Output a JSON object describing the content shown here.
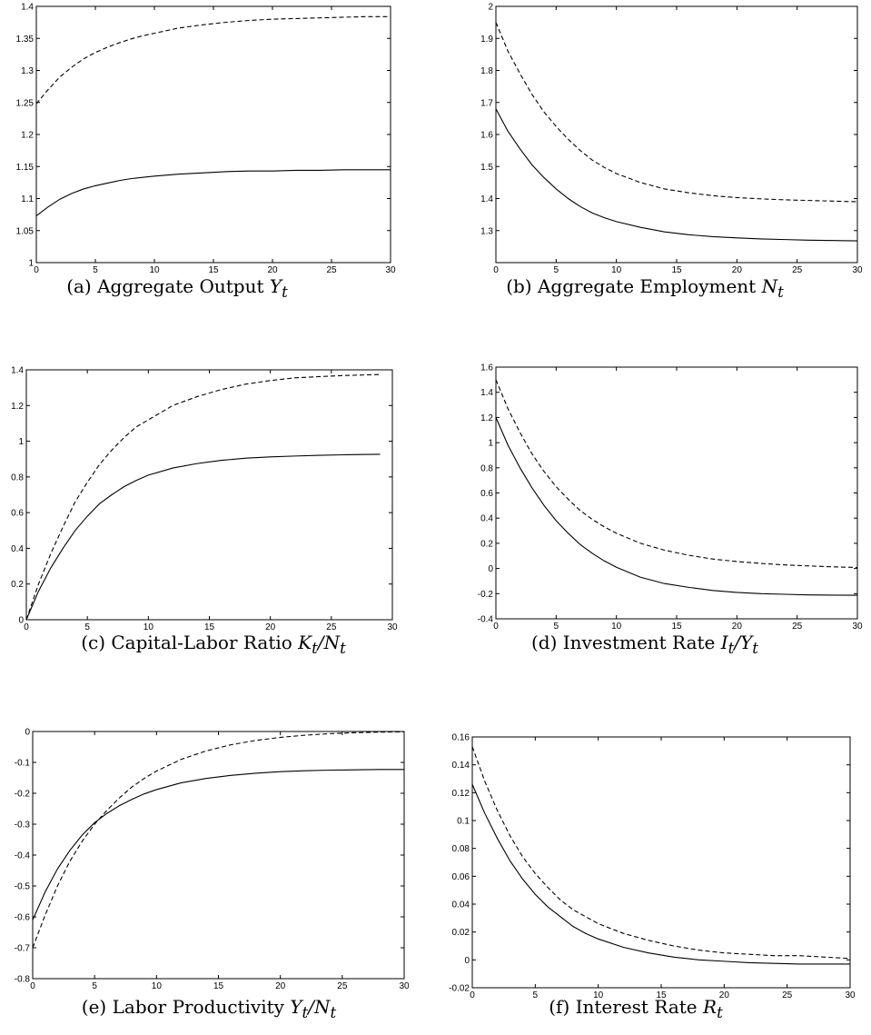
{
  "chart_data": [
    {
      "id": "a",
      "type": "line",
      "caption_prefix": "(a)",
      "caption_text": "Aggregate Output",
      "caption_var": "Y",
      "caption_sub": "t",
      "caption_rest": "",
      "x_ticks": [
        0,
        5,
        10,
        15,
        20,
        25,
        30
      ],
      "y_ticks": [
        1,
        1.05,
        1.1,
        1.15,
        1.2,
        1.25,
        1.3,
        1.35,
        1.4
      ],
      "xlim": [
        0,
        30
      ],
      "ylim": [
        1,
        1.4
      ],
      "series": [
        {
          "style": "solid",
          "x": [
            0,
            1,
            2,
            3,
            4,
            5,
            6,
            7,
            8,
            9,
            10,
            12,
            14,
            16,
            18,
            20,
            22,
            24,
            26,
            28,
            30
          ],
          "y": [
            1.073,
            1.087,
            1.099,
            1.108,
            1.115,
            1.12,
            1.124,
            1.128,
            1.131,
            1.133,
            1.135,
            1.138,
            1.14,
            1.142,
            1.143,
            1.143,
            1.144,
            1.144,
            1.145,
            1.145,
            1.145
          ]
        },
        {
          "style": "dashed",
          "x": [
            0,
            1,
            2,
            3,
            4,
            5,
            6,
            7,
            8,
            9,
            10,
            12,
            14,
            16,
            18,
            20,
            22,
            24,
            26,
            28,
            30
          ],
          "y": [
            1.248,
            1.27,
            1.29,
            1.305,
            1.318,
            1.328,
            1.336,
            1.343,
            1.349,
            1.354,
            1.358,
            1.366,
            1.371,
            1.375,
            1.378,
            1.38,
            1.381,
            1.382,
            1.383,
            1.384,
            1.384
          ]
        }
      ]
    },
    {
      "id": "b",
      "type": "line",
      "caption_prefix": "(b)",
      "caption_text": "Aggregate Employment",
      "caption_var": "N",
      "caption_sub": "t",
      "caption_rest": "",
      "x_ticks": [
        0,
        5,
        10,
        15,
        20,
        25,
        30
      ],
      "y_ticks": [
        1.3,
        1.4,
        1.5,
        1.6,
        1.7,
        1.8,
        1.9,
        2
      ],
      "xlim": [
        0,
        30
      ],
      "ylim": [
        1.2,
        2
      ],
      "series": [
        {
          "style": "solid",
          "x": [
            0,
            1,
            2,
            3,
            4,
            5,
            6,
            7,
            8,
            9,
            10,
            12,
            14,
            16,
            18,
            20,
            22,
            24,
            26,
            28,
            30
          ],
          "y": [
            1.68,
            1.61,
            1.555,
            1.505,
            1.465,
            1.43,
            1.4,
            1.375,
            1.355,
            1.34,
            1.328,
            1.31,
            1.296,
            1.287,
            1.281,
            1.277,
            1.274,
            1.272,
            1.27,
            1.269,
            1.268
          ]
        },
        {
          "style": "dashed",
          "x": [
            0,
            1,
            2,
            3,
            4,
            5,
            6,
            7,
            8,
            9,
            10,
            12,
            14,
            16,
            18,
            20,
            22,
            24,
            26,
            28,
            30
          ],
          "y": [
            1.95,
            1.86,
            1.79,
            1.725,
            1.67,
            1.625,
            1.585,
            1.55,
            1.52,
            1.497,
            1.478,
            1.45,
            1.43,
            1.418,
            1.409,
            1.403,
            1.399,
            1.396,
            1.394,
            1.392,
            1.39
          ]
        }
      ]
    },
    {
      "id": "c",
      "type": "line",
      "caption_prefix": "(c)",
      "caption_text": "Capital-Labor Ratio",
      "caption_var": "K",
      "caption_sub": "t",
      "caption_rest": "/N",
      "caption_sub2": "t",
      "x_ticks": [
        0,
        5,
        10,
        15,
        20,
        25,
        30
      ],
      "y_ticks": [
        0,
        0.2,
        0.4,
        0.6,
        0.8,
        1,
        1.2,
        1.4
      ],
      "xlim": [
        0,
        30
      ],
      "ylim": [
        0,
        1.4
      ],
      "series": [
        {
          "style": "solid",
          "x": [
            0,
            1,
            2,
            3,
            4,
            5,
            6,
            7,
            8,
            9,
            10,
            12,
            14,
            16,
            18,
            20,
            22,
            24,
            26,
            28,
            29
          ],
          "y": [
            0,
            0.16,
            0.29,
            0.4,
            0.5,
            0.58,
            0.65,
            0.7,
            0.745,
            0.78,
            0.81,
            0.85,
            0.875,
            0.893,
            0.905,
            0.912,
            0.917,
            0.921,
            0.924,
            0.926,
            0.927
          ]
        },
        {
          "style": "dashed",
          "x": [
            0,
            1,
            2,
            3,
            4,
            5,
            6,
            7,
            8,
            9,
            10,
            12,
            14,
            16,
            18,
            20,
            22,
            24,
            26,
            28,
            29
          ],
          "y": [
            0,
            0.2,
            0.37,
            0.52,
            0.66,
            0.77,
            0.87,
            0.95,
            1.02,
            1.08,
            1.12,
            1.2,
            1.25,
            1.29,
            1.32,
            1.34,
            1.355,
            1.362,
            1.368,
            1.372,
            1.374
          ]
        }
      ]
    },
    {
      "id": "d",
      "type": "line",
      "caption_prefix": "(d)",
      "caption_text": "Investment Rate",
      "caption_var": "I",
      "caption_sub": "t",
      "caption_rest": "/Y",
      "caption_sub2": "t",
      "x_ticks": [
        0,
        5,
        10,
        15,
        20,
        25,
        30
      ],
      "y_ticks": [
        -0.4,
        -0.2,
        0,
        0.2,
        0.4,
        0.6,
        0.8,
        1,
        1.2,
        1.4,
        1.6
      ],
      "xlim": [
        0,
        30
      ],
      "ylim": [
        -0.4,
        1.6
      ],
      "series": [
        {
          "style": "solid",
          "x": [
            0,
            1,
            2,
            3,
            4,
            5,
            6,
            7,
            8,
            9,
            10,
            12,
            14,
            16,
            18,
            20,
            22,
            24,
            26,
            28,
            30
          ],
          "y": [
            1.2,
            0.98,
            0.8,
            0.64,
            0.5,
            0.38,
            0.28,
            0.19,
            0.12,
            0.06,
            0.01,
            -0.07,
            -0.12,
            -0.15,
            -0.175,
            -0.19,
            -0.2,
            -0.205,
            -0.21,
            -0.212,
            -0.213
          ]
        },
        {
          "style": "dashed",
          "x": [
            0,
            1,
            2,
            3,
            4,
            5,
            6,
            7,
            8,
            9,
            10,
            12,
            14,
            16,
            18,
            20,
            22,
            24,
            26,
            28,
            30
          ],
          "y": [
            1.5,
            1.27,
            1.08,
            0.91,
            0.77,
            0.65,
            0.55,
            0.46,
            0.39,
            0.33,
            0.28,
            0.2,
            0.145,
            0.105,
            0.075,
            0.055,
            0.04,
            0.028,
            0.02,
            0.013,
            0.008
          ]
        }
      ]
    },
    {
      "id": "e",
      "type": "line",
      "caption_prefix": "(e)",
      "caption_text": "Labor Productivity",
      "caption_var": "Y",
      "caption_sub": "t",
      "caption_rest": "/N",
      "caption_sub2": "t",
      "x_ticks": [
        0,
        5,
        10,
        15,
        20,
        25,
        30
      ],
      "y_ticks": [
        -0.8,
        -0.7,
        -0.6,
        -0.5,
        -0.4,
        -0.3,
        -0.2,
        -0.1,
        0
      ],
      "xlim": [
        0,
        30
      ],
      "ylim": [
        -0.8,
        0
      ],
      "series": [
        {
          "style": "solid",
          "x": [
            0,
            1,
            2,
            3,
            4,
            5,
            6,
            7,
            8,
            9,
            10,
            12,
            14,
            16,
            18,
            20,
            22,
            24,
            26,
            28,
            30
          ],
          "y": [
            -0.61,
            -0.52,
            -0.445,
            -0.385,
            -0.335,
            -0.295,
            -0.265,
            -0.24,
            -0.22,
            -0.202,
            -0.188,
            -0.166,
            -0.152,
            -0.142,
            -0.135,
            -0.13,
            -0.127,
            -0.125,
            -0.124,
            -0.123,
            -0.123
          ]
        },
        {
          "style": "dashed",
          "x": [
            0,
            1,
            2,
            3,
            4,
            5,
            6,
            7,
            8,
            9,
            10,
            12,
            14,
            16,
            18,
            20,
            22,
            24,
            26,
            28,
            30
          ],
          "y": [
            -0.7,
            -0.595,
            -0.5,
            -0.42,
            -0.355,
            -0.3,
            -0.255,
            -0.215,
            -0.18,
            -0.152,
            -0.128,
            -0.09,
            -0.063,
            -0.043,
            -0.029,
            -0.019,
            -0.012,
            -0.007,
            -0.004,
            -0.002,
            -0.001
          ]
        }
      ]
    },
    {
      "id": "f",
      "type": "line",
      "caption_prefix": "(f)",
      "caption_text": "Interest Rate",
      "caption_var": "R",
      "caption_sub": "t",
      "caption_rest": "",
      "x_ticks": [
        0,
        5,
        10,
        15,
        20,
        25,
        30
      ],
      "y_ticks": [
        -0.02,
        0,
        0.02,
        0.04,
        0.06,
        0.08,
        0.1,
        0.12,
        0.14,
        0.16
      ],
      "xlim": [
        0,
        30
      ],
      "ylim": [
        -0.02,
        0.16
      ],
      "series": [
        {
          "style": "solid",
          "x": [
            0,
            1,
            2,
            3,
            4,
            5,
            6,
            7,
            8,
            9,
            10,
            12,
            14,
            16,
            18,
            20,
            22,
            24,
            26,
            28,
            30
          ],
          "y": [
            0.126,
            0.105,
            0.087,
            0.071,
            0.058,
            0.047,
            0.038,
            0.031,
            0.024,
            0.019,
            0.015,
            0.009,
            0.005,
            0.002,
            0.0,
            -0.001,
            -0.002,
            -0.0025,
            -0.003,
            -0.003,
            -0.003
          ]
        },
        {
          "style": "dashed",
          "x": [
            0,
            1,
            2,
            3,
            4,
            5,
            6,
            7,
            8,
            9,
            10,
            12,
            14,
            16,
            18,
            20,
            22,
            24,
            26,
            28,
            30
          ],
          "y": [
            0.153,
            0.128,
            0.107,
            0.089,
            0.074,
            0.062,
            0.052,
            0.043,
            0.036,
            0.031,
            0.026,
            0.019,
            0.014,
            0.01,
            0.007,
            0.005,
            0.004,
            0.003,
            0.003,
            0.002,
            0.001
          ]
        }
      ]
    }
  ]
}
